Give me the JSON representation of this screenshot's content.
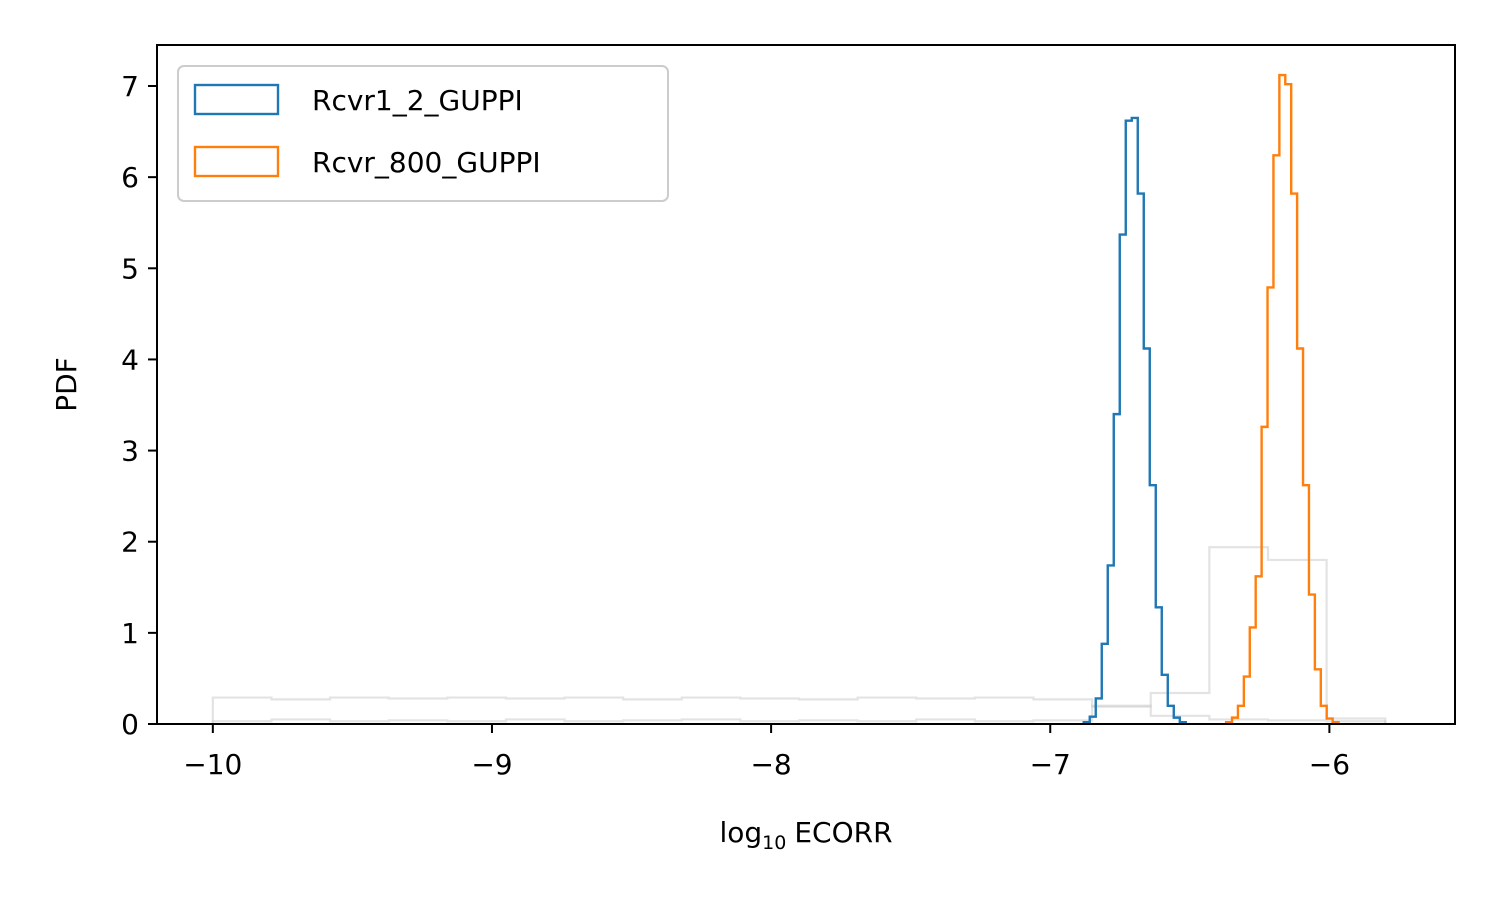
{
  "chart_data": {
    "type": "histogram",
    "xlabel_base": "log",
    "xlabel_sub": "10",
    "xlabel_rest": "ECORR",
    "ylabel": "PDF",
    "xlim": [
      -10.2,
      -5.55
    ],
    "ylim": [
      0,
      7.45
    ],
    "x_ticks": [
      -10,
      -9,
      -8,
      -7,
      -6
    ],
    "x_tick_labels": [
      "−10",
      "−9",
      "−8",
      "−7",
      "−6"
    ],
    "y_ticks": [
      0,
      1,
      2,
      3,
      4,
      5,
      6,
      7
    ],
    "y_tick_labels": [
      "0",
      "1",
      "2",
      "3",
      "4",
      "5",
      "6",
      "7"
    ],
    "grid": false,
    "legend_position": "top-left",
    "series": [
      {
        "name": "Rcvr1_2_GUPPI",
        "color": "#1f77b4",
        "bin_start": -6.88,
        "bin_width": 0.0215,
        "values": [
          0.02,
          0.08,
          0.28,
          0.88,
          1.74,
          3.4,
          5.37,
          6.62,
          6.65,
          5.82,
          4.12,
          2.62,
          1.28,
          0.54,
          0.2,
          0.07,
          0.02
        ]
      },
      {
        "name": "Rcvr_800_GUPPI",
        "color": "#ff7f0e",
        "bin_start": -6.37,
        "bin_width": 0.0212,
        "values": [
          0.02,
          0.07,
          0.2,
          0.52,
          1.06,
          1.62,
          3.26,
          4.79,
          6.24,
          7.12,
          7.02,
          5.82,
          4.12,
          2.62,
          1.42,
          0.6,
          0.2,
          0.06,
          0.02
        ]
      }
    ],
    "background_distributions": {
      "color": "#cccccc",
      "opacity": 0.55,
      "series": [
        {
          "edges": [
            -10.0,
            -9.79,
            -9.58,
            -9.37,
            -9.16,
            -8.95,
            -8.74,
            -8.53,
            -8.32,
            -8.11,
            -7.9,
            -7.69,
            -7.48,
            -7.27,
            -7.06,
            -6.85,
            -6.64,
            -6.43,
            -6.22,
            -6.01,
            -5.8
          ],
          "values": [
            0.29,
            0.27,
            0.29,
            0.28,
            0.29,
            0.28,
            0.29,
            0.27,
            0.29,
            0.28,
            0.27,
            0.29,
            0.28,
            0.29,
            0.27,
            0.19,
            0.34,
            1.94,
            1.8,
            0.06
          ]
        },
        {
          "edges": [
            -10.0,
            -9.79,
            -9.58,
            -9.37,
            -9.16,
            -8.95,
            -8.74,
            -8.53,
            -8.32,
            -8.11,
            -7.9,
            -7.69,
            -7.48,
            -7.27,
            -7.06,
            -6.85,
            -6.64,
            -6.43,
            -6.22,
            -6.01,
            -5.8
          ],
          "values": [
            0.03,
            0.05,
            0.03,
            0.04,
            0.03,
            0.05,
            0.03,
            0.04,
            0.05,
            0.03,
            0.04,
            0.03,
            0.05,
            0.03,
            0.04,
            0.2,
            0.09,
            0.05,
            0.04,
            0.03
          ]
        }
      ]
    }
  }
}
